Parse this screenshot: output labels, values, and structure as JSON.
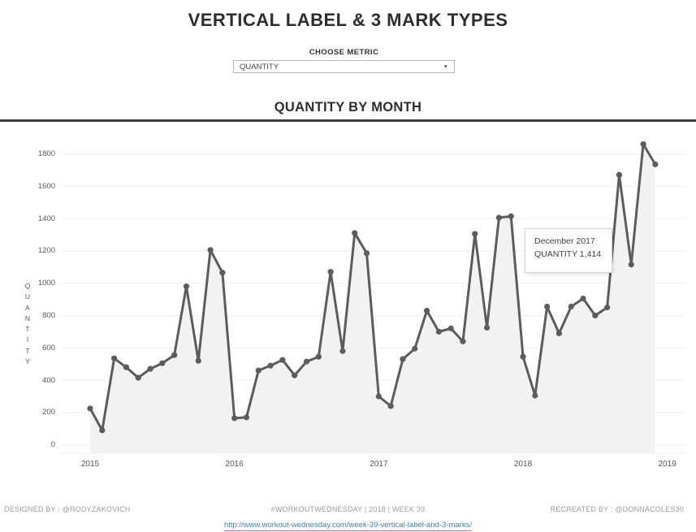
{
  "title": "VERTICAL LABEL & 3 MARK TYPES",
  "metric_picker": {
    "label": "CHOOSE METRIC",
    "value": "QUANTITY",
    "dropdown_icon": "chevron-down-icon",
    "dropdown_icon_glyph": "▼"
  },
  "tooltip": {
    "line1": "December 2017",
    "line2": "QUANTITY 1,414"
  },
  "footer": {
    "left": "DESIGNED BY : @RODYZAKOVICH",
    "center": "#WORKOUTWEDNESDAY | 2018 | WEEK 39",
    "right": "RECREATED BY : @DONNACOLES30",
    "link": "http://www.workout-wednesday.com/week-39-vertical-label-and-3-marks/"
  },
  "chart_data": {
    "type": "line",
    "title": "QUANTITY BY MONTH",
    "xlabel": "",
    "ylabel": "QUANTITY",
    "marks": [
      "area",
      "line",
      "circle"
    ],
    "grid": "horizontal",
    "legend": "none",
    "line_color": "#5c5c5c",
    "area_color": "#f2f2f2",
    "gridline_color": "#efefef",
    "y_ticks": [
      0,
      200,
      400,
      600,
      800,
      1000,
      1200,
      1400,
      1600,
      1800
    ],
    "ylim": [
      -55,
      1950
    ],
    "x_tick_labels": [
      "2015",
      "2016",
      "2017",
      "2018",
      "2019"
    ],
    "categories": [
      "Jan 2015",
      "Feb 2015",
      "Mar 2015",
      "Apr 2015",
      "May 2015",
      "Jun 2015",
      "Jul 2015",
      "Aug 2015",
      "Sep 2015",
      "Oct 2015",
      "Nov 2015",
      "Dec 2015",
      "Jan 2016",
      "Feb 2016",
      "Mar 2016",
      "Apr 2016",
      "May 2016",
      "Jun 2016",
      "Jul 2016",
      "Aug 2016",
      "Sep 2016",
      "Oct 2016",
      "Nov 2016",
      "Dec 2016",
      "Jan 2017",
      "Feb 2017",
      "Mar 2017",
      "Apr 2017",
      "May 2017",
      "Jun 2017",
      "Jul 2017",
      "Aug 2017",
      "Sep 2017",
      "Oct 2017",
      "Nov 2017",
      "Dec 2017",
      "Jan 2018",
      "Feb 2018",
      "Mar 2018",
      "Apr 2018",
      "May 2018",
      "Jun 2018",
      "Jul 2018",
      "Aug 2018",
      "Sep 2018",
      "Oct 2018",
      "Nov 2018",
      "Dec 2018"
    ],
    "series": [
      {
        "name": "QUANTITY",
        "values": [
          225,
          90,
          535,
          480,
          415,
          470,
          505,
          555,
          980,
          520,
          1205,
          1065,
          165,
          170,
          460,
          490,
          525,
          430,
          515,
          545,
          1070,
          580,
          1310,
          1185,
          300,
          240,
          530,
          595,
          830,
          700,
          720,
          640,
          1305,
          725,
          1405,
          1414,
          545,
          305,
          855,
          690,
          855,
          905,
          800,
          850,
          1670,
          1115,
          1860,
          1735
        ]
      }
    ],
    "highlighted_point": {
      "category": "Dec 2017",
      "value": 1414
    }
  }
}
